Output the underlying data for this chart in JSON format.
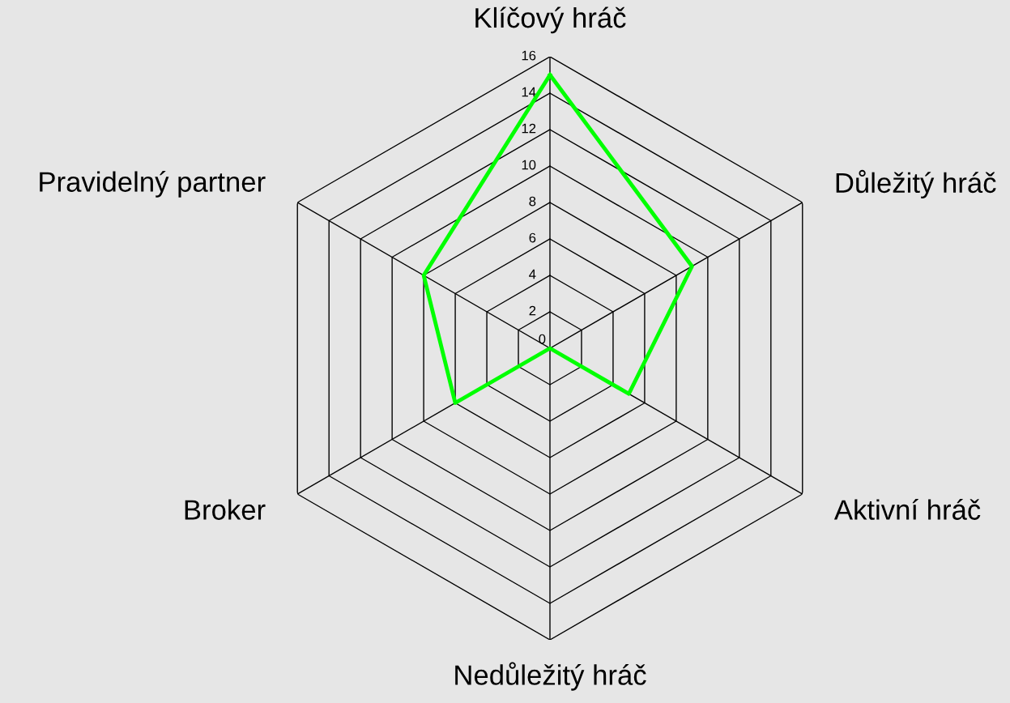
{
  "chart_data": {
    "type": "radar",
    "categories": [
      "Klíčový hráč",
      "Důležitý hráč",
      "Aktivní hráč",
      "Nedůležitý hráč",
      "Broker",
      "Pravidelný partner"
    ],
    "series": [
      {
        "color": "#00ff00",
        "values": [
          15,
          9,
          5,
          0,
          6,
          8
        ]
      }
    ],
    "ylim": [
      0,
      16
    ],
    "yticks": [
      0,
      2,
      4,
      6,
      8,
      10,
      12,
      14,
      16
    ],
    "grid": true
  }
}
